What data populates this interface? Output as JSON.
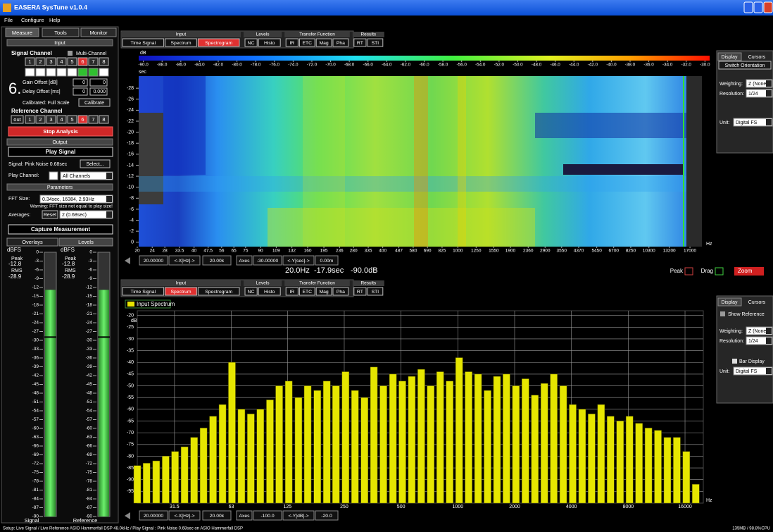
{
  "window": {
    "title": "EASERA SysTune v1.0.4",
    "menu": [
      "File",
      "Configure",
      "Help"
    ]
  },
  "left_panel": {
    "tabs": [
      "Measure",
      "Tools",
      "Monitor"
    ],
    "input": {
      "header": "Input",
      "signal_channel": "Signal Channel",
      "multi_channel": "Multi-Channel",
      "channels": [
        "1",
        "2",
        "3",
        "4",
        "5",
        "6",
        "7",
        "8"
      ],
      "active": "6",
      "channel_number": "6.",
      "gain_offset": "Gain Offset [dB]",
      "gain_values": [
        "0",
        "0"
      ],
      "delay_offset": "Delay Offset [ms]",
      "delay_values": [
        "0",
        "0.000"
      ],
      "calibrated": "Calibrated: Full Scale",
      "calibrate": "Calibrate",
      "reference_channel": "Reference Channel",
      "reference_out": "out",
      "reference_channels": [
        "1",
        "2",
        "3",
        "4",
        "5",
        "6",
        "7",
        "8"
      ],
      "reference_active": "6",
      "stop": "Stop Analysis"
    },
    "output": {
      "header": "Output",
      "play": "Play Signal",
      "signal": "Signal: Pink Noise 0.68sec",
      "select": "Select...",
      "play_channel": "Play Channel:",
      "channel_option": "All Channels"
    },
    "parameters": {
      "header": "Parameters",
      "fft_size": "FFT Size:",
      "fft_option": "0.34sec, 16384, 2.93Hz",
      "warning": "Warning: FFT size not equal to play size!",
      "averages": "Averages:",
      "reset": "Reset",
      "averages_option": "2 (0.68sec)",
      "capture": "Capture Measurement"
    },
    "meter_tabs": [
      "Overlays",
      "Levels"
    ],
    "meters": {
      "unit": "dBFS",
      "peak_label": "Peak",
      "rms_label": "RMS",
      "lim": [
        0,
        -90
      ],
      "scale": [
        0,
        -3,
        -6,
        -9,
        -12,
        -15,
        -18,
        -21,
        -24,
        -27,
        -30,
        -33,
        -36,
        -39,
        -42,
        -45,
        -48,
        -51,
        -54,
        -57,
        -60,
        -63,
        -66,
        -69,
        -72,
        -75,
        -78,
        -81,
        -84,
        -87,
        -90
      ],
      "channels": [
        {
          "name": "Signal",
          "peak": -12.8,
          "rms": -28.9
        },
        {
          "name": "Reference",
          "peak": -12.8,
          "rms": -28.9
        }
      ]
    }
  },
  "toolbars": [
    {
      "groups": [
        {
          "title": "Input",
          "buttons": [
            "Time Signal",
            "Spectrum",
            "Spectrogram"
          ]
        },
        {
          "title": "Levels",
          "buttons": [
            "NC",
            "Histo"
          ]
        },
        {
          "title": "Transfer Function",
          "buttons": [
            "IR",
            "ETC",
            "Mag",
            "Pha"
          ]
        },
        {
          "title": "Results",
          "buttons": [
            "RT",
            "STI"
          ]
        }
      ],
      "active": "Spectrogram"
    },
    {
      "groups": [
        {
          "title": "Input",
          "buttons": [
            "Time Signal",
            "Spectrum",
            "Spectrogram"
          ]
        },
        {
          "title": "Levels",
          "buttons": [
            "NC",
            "Histo"
          ]
        },
        {
          "title": "Transfer Function",
          "buttons": [
            "IR",
            "ETC",
            "Mag",
            "Pha"
          ]
        },
        {
          "title": "Results",
          "buttons": [
            "RT",
            "STI"
          ]
        }
      ],
      "active": "Spectrum"
    }
  ],
  "axis_controls": [
    [
      "20.00000",
      "<-X[Hz]->",
      "20.00k",
      "Axes",
      "-30.00000",
      "<-Y[sec]->",
      "0.00m"
    ],
    [
      "20.00000",
      "<-X[Hz]->",
      "20.00k",
      "Axes",
      "-100.0",
      "<-Y[dB]->",
      "-20.0"
    ]
  ],
  "readout": {
    "frequency": "20.0Hz",
    "time": "-17.9sec",
    "level": "-90.0dB",
    "peak": "Peak",
    "drag": "Drag",
    "zoom": "Zoom"
  },
  "display_panels": [
    {
      "tabs": [
        "Display",
        "Cursors"
      ],
      "switch": "Switch Orientation",
      "weighting": "Weighting:",
      "weighting_option": "Z (None)",
      "resolution": "Resolution:",
      "resolution_option": "1/24",
      "unit": "Unit:",
      "unit_option": "Digital FS"
    },
    {
      "tabs": [
        "Display",
        "Cursors"
      ],
      "show_reference": "Show Reference",
      "weighting": "Weighting:",
      "weighting_option": "Z (None)",
      "resolution": "Resolution:",
      "resolution_option": "1/24",
      "bar_display": "Bar Display",
      "unit": "Unit:",
      "unit_option": "Digital FS"
    }
  ],
  "status": {
    "setup": "Setup: Live Signal / Live Reference ASIO Hammerfall DSP 48.0kHz / Play Signal : Pink Noise 0.68sec on ASIO Hammerfall DSP",
    "memory": "135MB / 98.8%CPU"
  },
  "chart_data": [
    {
      "type": "heatmap",
      "x_unit": "Hz",
      "y_unit": "sec",
      "colorbar_unit": "dB",
      "log_x": true,
      "xlim": [
        20,
        20000
      ],
      "ylim": [
        0.8,
        -30.2
      ],
      "xticks": [
        20,
        24,
        28,
        33.5,
        40,
        47.5,
        56,
        65,
        75,
        90,
        109,
        132,
        160,
        195,
        236,
        280,
        335,
        400,
        487,
        580,
        690,
        825,
        1000,
        1250,
        1550,
        1900,
        2360,
        2900,
        3550,
        4370,
        5450,
        6700,
        8250,
        10300,
        13200,
        17000
      ],
      "yticks": [
        -28,
        -26,
        -24,
        -22,
        -20,
        -18,
        -16,
        -14,
        -12,
        -10,
        -8,
        -6,
        -4,
        -2,
        0
      ],
      "clim": [
        -90.5,
        -29.5
      ],
      "cticks": [
        {
          "value": -90,
          "label": "-90.0"
        },
        {
          "value": -88,
          "label": "-88.0"
        },
        {
          "value": -86,
          "label": "-86.0"
        },
        {
          "value": -84,
          "label": "-84.0"
        },
        {
          "value": -82,
          "label": "-82.0"
        },
        {
          "value": -80,
          "label": "-80.0"
        },
        {
          "value": -78,
          "label": "-78.0"
        },
        {
          "value": -76,
          "label": "-76.0"
        },
        {
          "value": -74,
          "label": "-74.0"
        },
        {
          "value": -72,
          "label": "-72.0"
        },
        {
          "value": -70,
          "label": "-70.0"
        },
        {
          "value": -68,
          "label": "-68.0"
        },
        {
          "value": -66,
          "label": "-66.0"
        },
        {
          "value": -64,
          "label": "-64.0"
        },
        {
          "value": -62,
          "label": "-62.0"
        },
        {
          "value": -60,
          "label": "-60.0"
        },
        {
          "value": -58,
          "label": "-58.0"
        },
        {
          "value": -56,
          "label": "-56.0"
        },
        {
          "value": -54,
          "label": "-54.0"
        },
        {
          "value": -52,
          "label": "-52.0"
        },
        {
          "value": -50,
          "label": "-50.0"
        },
        {
          "value": -48,
          "label": "-48.0"
        },
        {
          "value": -46,
          "label": "-46.0"
        },
        {
          "value": -44,
          "label": "-44.0"
        },
        {
          "value": -42,
          "label": "-42.0"
        },
        {
          "value": -40,
          "label": "-40.0"
        },
        {
          "value": -38,
          "label": "-38.0"
        },
        {
          "value": -36,
          "label": "-36.0"
        },
        {
          "value": -34,
          "label": "-34.0"
        },
        {
          "value": -32,
          "label": "-32.0"
        },
        {
          "value": -30,
          "label": "-30.0"
        }
      ]
    },
    {
      "type": "bar",
      "x_unit": "Hz",
      "y_unit": "dB",
      "log_x": true,
      "grid": true,
      "xlim": [
        20,
        20000
      ],
      "ylim": [
        -100,
        -18
      ],
      "xticks": [
        31.5,
        63,
        125,
        250,
        500,
        1000,
        2000,
        4000,
        8000,
        16000
      ],
      "yticks": [
        -20,
        -25,
        -30,
        -35,
        -40,
        -45,
        -50,
        -55,
        -60,
        -65,
        -70,
        -75,
        -80,
        -85,
        -90,
        -95
      ],
      "x": [
        20,
        22.4,
        25.2,
        28.3,
        31.7,
        35.6,
        40,
        44.9,
        50.4,
        56.6,
        63.5,
        71.3,
        80,
        89.8,
        101,
        113,
        127,
        143,
        160,
        180,
        202,
        226,
        254,
        285,
        320,
        359,
        403,
        453,
        508,
        570,
        640,
        718,
        806,
        905,
        1016,
        1140,
        1280,
        1437,
        1613,
        1810,
        2032,
        2281,
        2560,
        2874,
        3225,
        3620,
        4064,
        4561,
        5120,
        5747,
        6451,
        7241,
        8127,
        9123,
        10240,
        11494,
        12902,
        14482,
        16255,
        18245
      ],
      "series": [
        {
          "name": "Input Spectrum",
          "color": "#e6e600",
          "values": [
            -84,
            -83,
            -82,
            -80,
            -78,
            -76,
            -72,
            -68,
            -63,
            -58,
            -40,
            -60,
            -62,
            -60,
            -56,
            -50,
            -48,
            -55,
            -50,
            -52,
            -48,
            -50,
            -44,
            -52,
            -55,
            -42,
            -50,
            -45,
            -48,
            -46,
            -43,
            -50,
            -44,
            -48,
            -38,
            -44,
            -45,
            -52,
            -46,
            -45,
            -50,
            -47,
            -54,
            -49,
            -45,
            -50,
            -58,
            -60,
            -62,
            -58,
            -63,
            -65,
            -63,
            -66,
            -68,
            -69,
            -72,
            -72,
            -78,
            -92
          ]
        }
      ]
    }
  ]
}
